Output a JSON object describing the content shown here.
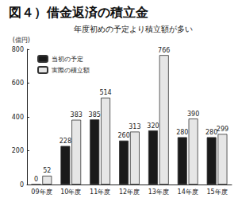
{
  "chart_data": {
    "type": "bar",
    "title": "図４）借金返済の積立金",
    "subtitle": "年度初めの予定より積立額が多い",
    "y_label": "(億円)",
    "categories": [
      "09年度",
      "10年度",
      "11年度",
      "12年度",
      "13年度",
      "14年度",
      "15年度"
    ],
    "series": [
      {
        "name": "当初の予定",
        "color": "#1a1a1a",
        "values": [
          0,
          228,
          385,
          260,
          320,
          280,
          280
        ]
      },
      {
        "name": "実際の積立額",
        "color": "#e6e6e6",
        "values": [
          52,
          383,
          514,
          313,
          766,
          390,
          299
        ]
      }
    ],
    "ylim": [
      0,
      800
    ],
    "yticks": [
      0,
      200,
      400,
      600,
      800
    ],
    "grid": false,
    "legend": "upper left",
    "data_labels": true
  }
}
